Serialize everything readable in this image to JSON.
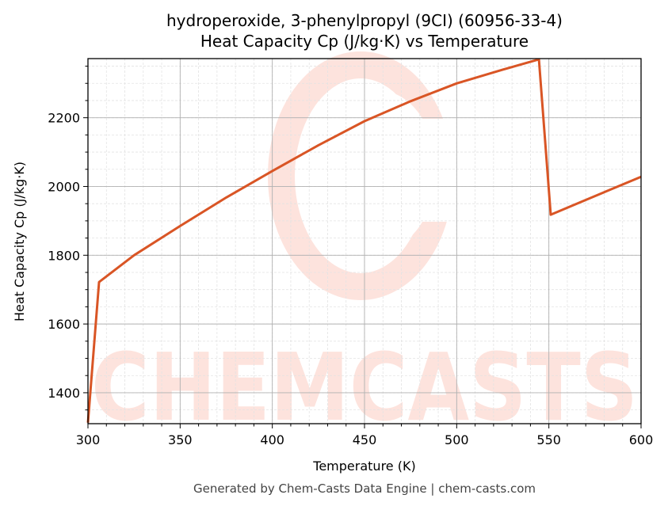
{
  "chart_data": {
    "type": "line",
    "title": "hydroperoxide, 3-phenylpropyl (9CI) (60956-33-4)",
    "subtitle": "Heat Capacity Cp (J/kg·K) vs Temperature",
    "xlabel": "Temperature (K)",
    "ylabel": "Heat Capacity Cp (J/kg·K)",
    "xlim": [
      300,
      600
    ],
    "ylim": [
      1310,
      2372
    ],
    "xticks": [
      300,
      350,
      400,
      450,
      500,
      550,
      600
    ],
    "yticks": [
      1400,
      1600,
      1800,
      2000,
      2200
    ],
    "grid": true,
    "legend": null,
    "series": [
      {
        "name": "Cp",
        "color": "#d95525",
        "x": [
          300,
          306,
          325,
          350,
          375,
          400,
          425,
          450,
          475,
          500,
          525,
          544.6,
          551,
          575,
          600
        ],
        "y": [
          1313,
          1722,
          1800,
          1885,
          1968,
          2045,
          2120,
          2190,
          2248,
          2300,
          2340,
          2370,
          1918,
          1972,
          2028
        ]
      }
    ]
  },
  "header": {
    "title_line1": "hydroperoxide, 3-phenylpropyl (9CI) (60956-33-4)",
    "title_line2": "Heat Capacity Cp (J/kg·K) vs Temperature"
  },
  "watermark": {
    "text": "CHEMCASTS",
    "color": "#fde3dd"
  },
  "footer": {
    "text": "Generated by Chem-Casts Data Engine | chem-casts.com"
  }
}
